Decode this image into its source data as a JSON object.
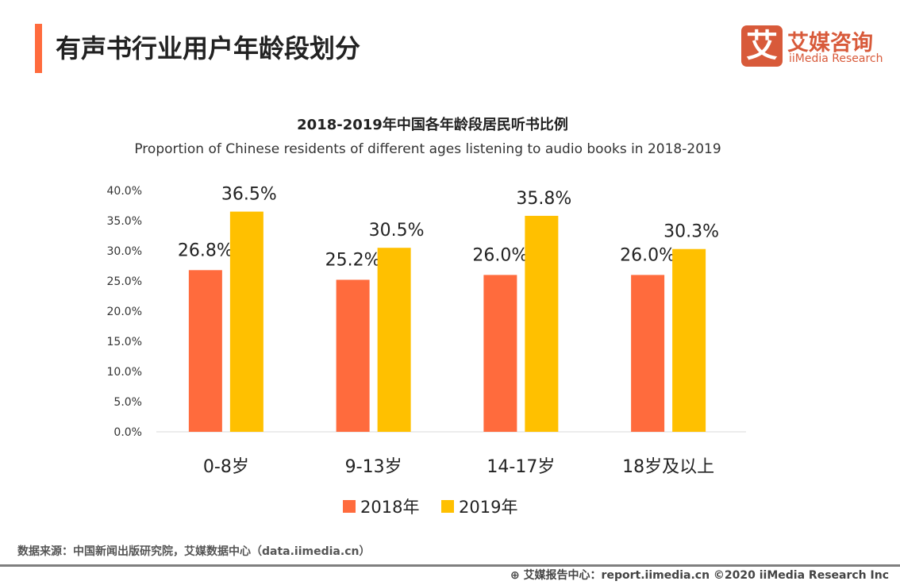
{
  "page_title": "有声书行业用户年龄段划分",
  "logo": {
    "glyph": "艾",
    "cn": "艾媒咨询",
    "en": "iiMedia Research",
    "color": "#d85a3a"
  },
  "footer": {
    "source": "数据来源：中国新闻出版研究院，艾媒数据中心（data.iimedia.cn）",
    "copyright": "艾媒报告中心：report.iimedia.cn   ©2020  iiMedia Research  Inc",
    "icon": "globe-icon"
  },
  "chart_data": {
    "type": "bar",
    "title": "2018-2019年中国各年龄段居民听书比例",
    "subtitle": "Proportion of Chinese residents of different ages listening to audio books in 2018-2019",
    "categories": [
      "0-8岁",
      "9-13岁",
      "14-17岁",
      "18岁及以上"
    ],
    "series": [
      {
        "name": "2018年",
        "values": [
          26.8,
          25.2,
          26.0,
          26.0
        ],
        "labels": [
          "26.8%",
          "25.2%",
          "26.0%",
          "26.0%"
        ],
        "color": "#ff6b3d"
      },
      {
        "name": "2019年",
        "values": [
          36.5,
          30.5,
          35.8,
          30.3
        ],
        "labels": [
          "36.5%",
          "30.5%",
          "35.8%",
          "30.3%"
        ],
        "color": "#ffc000"
      }
    ],
    "yticks": [
      "0.0%",
      "5.0%",
      "10.0%",
      "15.0%",
      "20.0%",
      "25.0%",
      "30.0%",
      "35.0%",
      "40.0%"
    ],
    "ylim": [
      0,
      40
    ],
    "grid": false,
    "legend": "bottom"
  }
}
